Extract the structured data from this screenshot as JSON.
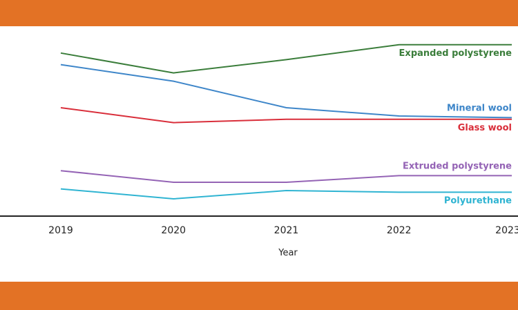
{
  "colors": {
    "band": "#E37225",
    "axis": "#222222",
    "tick_text": "#222222"
  },
  "chart_data": {
    "type": "line",
    "x": [
      2019,
      2020,
      2021,
      2022,
      2023
    ],
    "xlabel": "Year",
    "ylabel": "",
    "title": "",
    "ylim": [
      0,
      100
    ],
    "grid": false,
    "legend": "inline labels at right end of each line",
    "series": [
      {
        "name": "Expanded polystyrene",
        "color": "#3A7D3A",
        "values": [
          93,
          81,
          89,
          98,
          98
        ]
      },
      {
        "name": "Mineral wool",
        "color": "#3E86C9",
        "values": [
          86,
          76,
          60,
          55,
          54
        ]
      },
      {
        "name": "Glass wool",
        "color": "#D92E3A",
        "values": [
          60,
          51,
          53,
          53,
          53
        ]
      },
      {
        "name": "Extruded polystyrene",
        "color": "#9463B5",
        "values": [
          22,
          15,
          15,
          19,
          19
        ]
      },
      {
        "name": "Polyurethane",
        "color": "#2FB4D2",
        "values": [
          11,
          5,
          10,
          9,
          9
        ]
      }
    ]
  }
}
